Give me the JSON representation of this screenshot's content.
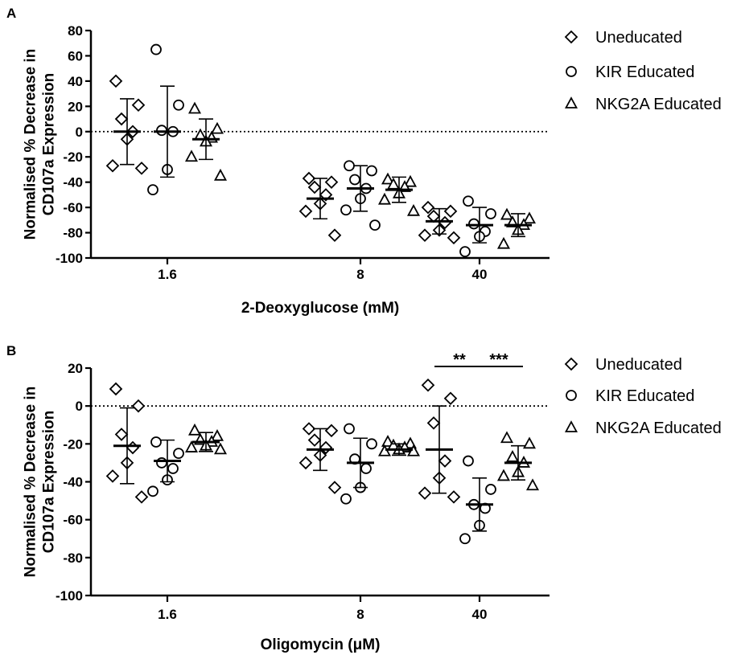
{
  "chart_data": [
    {
      "panel": "A",
      "type": "scatter",
      "categories": [
        "1.6",
        "8",
        "40"
      ],
      "xlabel": "2-Deoxyglucose (mM)",
      "ylabel_lines": [
        "Normalised % Decrease in",
        "CD107a Expression"
      ],
      "ylim": [
        -100,
        80
      ],
      "yticks": [
        80,
        60,
        40,
        20,
        0,
        -20,
        -40,
        -60,
        -80,
        -100
      ],
      "reference_line": 0,
      "legend_position": "right",
      "series": [
        {
          "name": "Uneducated",
          "marker": "diamond",
          "points": [
            [
              40,
              21,
              10,
              0,
              -6,
              -27,
              -29
            ],
            [
              -37,
              -40,
              -44,
              -50,
              -57,
              -63,
              -82
            ],
            [
              -60,
              -63,
              -67,
              -72,
              -78,
              -82,
              -84
            ]
          ],
          "mean": [
            0,
            -53,
            -71
          ],
          "sd": [
            26,
            16,
            10
          ]
        },
        {
          "name": "KIR Educated",
          "marker": "circle",
          "points": [
            [
              65,
              21,
              1,
              0,
              -30,
              -46
            ],
            [
              -27,
              -31,
              -38,
              -45,
              -53,
              -62,
              -74
            ],
            [
              -55,
              -65,
              -73,
              -79,
              -83,
              -95
            ]
          ],
          "mean": [
            0,
            -45,
            -74
          ],
          "sd": [
            36,
            18,
            14
          ]
        },
        {
          "name": "NKG2A Educated",
          "marker": "triangle",
          "points": [
            [
              18,
              2,
              -3,
              -5,
              -8,
              -20,
              -35
            ],
            [
              -38,
              -40,
              -42,
              -44,
              -49,
              -54,
              -63
            ],
            [
              -66,
              -69,
              -72,
              -74,
              -78,
              -89
            ]
          ],
          "mean": [
            -6,
            -46,
            -74
          ],
          "sd": [
            16,
            10,
            9
          ]
        }
      ]
    },
    {
      "panel": "B",
      "type": "scatter",
      "categories": [
        "1.6",
        "8",
        "40"
      ],
      "xlabel": "Oligomycin (μM)",
      "ylabel_lines": [
        "Normalised % Decrease in",
        "CD107a Expression"
      ],
      "ylim": [
        -100,
        20
      ],
      "yticks": [
        20,
        0,
        -20,
        -40,
        -60,
        -80,
        -100
      ],
      "reference_line": 0,
      "legend_position": "right",
      "series": [
        {
          "name": "Uneducated",
          "marker": "diamond",
          "points": [
            [
              9,
              0,
              -15,
              -22,
              -30,
              -37,
              -48
            ],
            [
              -12,
              -13,
              -18,
              -22,
              -26,
              -30,
              -43
            ],
            [
              11,
              4,
              -9,
              -29,
              -38,
              -46,
              -48
            ]
          ],
          "mean": [
            -21,
            -23,
            -23
          ],
          "sd": [
            20,
            11,
            23
          ]
        },
        {
          "name": "KIR Educated",
          "marker": "circle",
          "points": [
            [
              -19,
              -25,
              -30,
              -33,
              -39,
              -45
            ],
            [
              -12,
              -20,
              -28,
              -33,
              -43,
              -49
            ],
            [
              -29,
              -44,
              -52,
              -54,
              -63,
              -70
            ]
          ],
          "mean": [
            -29,
            -30,
            -52
          ],
          "sd": [
            11,
            13,
            14
          ]
        },
        {
          "name": "NKG2A Educated",
          "marker": "triangle",
          "points": [
            [
              -13,
              -16,
              -18,
              -19,
              -21,
              -22,
              -23
            ],
            [
              -19,
              -20,
              -21,
              -22,
              -23,
              -24,
              -24
            ],
            [
              -17,
              -20,
              -27,
              -30,
              -35,
              -37,
              -42
            ]
          ],
          "mean": [
            -19,
            -23,
            -30
          ],
          "sd": [
            5,
            3,
            9
          ]
        }
      ],
      "significance": [
        {
          "label": "**",
          "between": [
            "Uneducated",
            "KIR Educated"
          ],
          "category": "40"
        },
        {
          "label": "***",
          "between": [
            "KIR Educated",
            "NKG2A Educated"
          ],
          "category": "40"
        }
      ]
    }
  ]
}
